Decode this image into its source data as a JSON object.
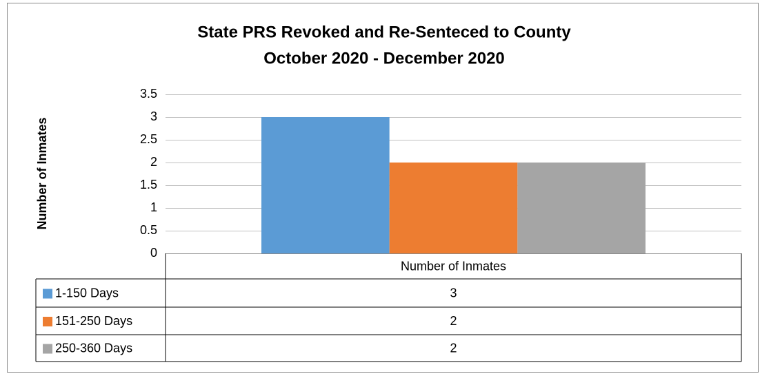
{
  "chart_data": {
    "type": "bar",
    "title": "State PRS Revoked and Re-Senteced to County",
    "subtitle": "October 2020 - December 2020",
    "y_label": "Number of Inmates",
    "categories": [
      "Number of Inmates"
    ],
    "series": [
      {
        "name": "1-150 Days",
        "color": "#5b9bd5",
        "values": [
          3
        ]
      },
      {
        "name": "151-250 Days",
        "color": "#ed7d31",
        "values": [
          2
        ]
      },
      {
        "name": "250-360 Days",
        "color": "#a5a5a5",
        "values": [
          2
        ]
      }
    ],
    "ylim": [
      0,
      3.5
    ],
    "yticks": [
      0,
      0.5,
      1,
      1.5,
      2,
      2.5,
      3,
      3.5
    ],
    "grid": true,
    "data_table": true
  }
}
